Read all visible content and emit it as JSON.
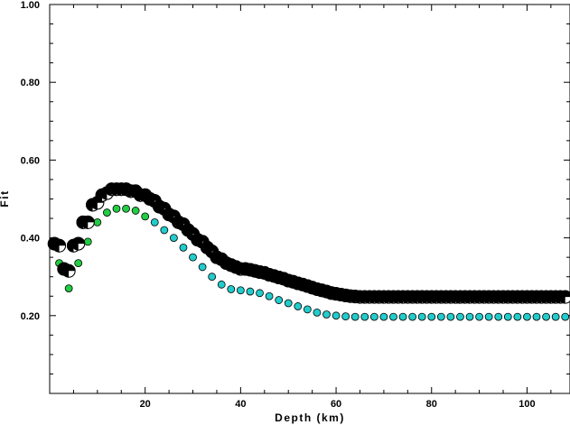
{
  "chart_data": {
    "type": "scatter",
    "xlabel": "Depth (km)",
    "ylabel": "Fit",
    "xlim": [
      0,
      109
    ],
    "ylim": [
      0,
      1.0
    ],
    "x_ticks": [
      20,
      40,
      60,
      80,
      100
    ],
    "y_ticks": [
      0.2,
      0.4,
      0.6,
      0.8,
      1.0
    ],
    "x_tick_labels": [
      "20",
      "40",
      "60",
      "80",
      "100"
    ],
    "y_tick_labels": [
      "0.20",
      "0.40",
      "0.60",
      "0.80",
      "1.00"
    ],
    "grid": false,
    "legend": false,
    "colors": {
      "beachball_fill": "#000000",
      "beachball_rim": "#ffffff",
      "small_green": "#22cc44",
      "small_cyan": "#22cccc"
    },
    "series": [
      {
        "marker": "beachball",
        "x": [
          1,
          2,
          3,
          4,
          5,
          6,
          7,
          8,
          9,
          10,
          11,
          12,
          13,
          14,
          15,
          16,
          17,
          18,
          19,
          20,
          21,
          22,
          23,
          24,
          25,
          26,
          27,
          28,
          29,
          30,
          31,
          32,
          33,
          34,
          35,
          36,
          37,
          38,
          39,
          40,
          41,
          42,
          43,
          44,
          45,
          46,
          47,
          48,
          49,
          50,
          51,
          52,
          53,
          54,
          55,
          56,
          57,
          58,
          59,
          60,
          61,
          62,
          63,
          64,
          65,
          66,
          67,
          68,
          69,
          70,
          71,
          72,
          73,
          74,
          75,
          76,
          77,
          78,
          79,
          80,
          81,
          82,
          83,
          84,
          85,
          86,
          87,
          88,
          89,
          90,
          91,
          92,
          93,
          94,
          95,
          96,
          97,
          98,
          99,
          100,
          101,
          102,
          103,
          104,
          105,
          106,
          107,
          108
        ],
        "y": [
          0.385,
          0.38,
          0.32,
          0.315,
          0.38,
          0.385,
          0.44,
          0.44,
          0.485,
          0.49,
          0.51,
          0.515,
          0.525,
          0.525,
          0.525,
          0.525,
          0.52,
          0.52,
          0.51,
          0.51,
          0.5,
          0.495,
          0.48,
          0.475,
          0.46,
          0.455,
          0.44,
          0.435,
          0.42,
          0.41,
          0.395,
          0.39,
          0.375,
          0.365,
          0.35,
          0.345,
          0.335,
          0.33,
          0.325,
          0.32,
          0.32,
          0.318,
          0.315,
          0.312,
          0.31,
          0.305,
          0.302,
          0.298,
          0.295,
          0.29,
          0.287,
          0.283,
          0.28,
          0.276,
          0.272,
          0.268,
          0.265,
          0.262,
          0.258,
          0.256,
          0.254,
          0.252,
          0.25,
          0.249,
          0.248,
          0.248,
          0.248,
          0.248,
          0.248,
          0.248,
          0.248,
          0.248,
          0.248,
          0.248,
          0.248,
          0.248,
          0.248,
          0.248,
          0.248,
          0.248,
          0.248,
          0.248,
          0.248,
          0.248,
          0.248,
          0.248,
          0.248,
          0.248,
          0.248,
          0.248,
          0.248,
          0.248,
          0.248,
          0.248,
          0.248,
          0.248,
          0.248,
          0.248,
          0.248,
          0.248,
          0.248,
          0.248,
          0.248,
          0.248,
          0.248,
          0.248,
          0.248,
          0.248
        ]
      },
      {
        "marker": "small_circle",
        "x": [
          2,
          4,
          6,
          8,
          10,
          12,
          14,
          16,
          18,
          20,
          22,
          24,
          26,
          28,
          30,
          32,
          34,
          36,
          38,
          40,
          42,
          44,
          46,
          48,
          50,
          52,
          54,
          56,
          58,
          60,
          62,
          64,
          66,
          68,
          70,
          72,
          74,
          76,
          78,
          80,
          82,
          84,
          86,
          88,
          90,
          92,
          94,
          96,
          98,
          100,
          102,
          104,
          106,
          108
        ],
        "y": [
          0.335,
          0.27,
          0.335,
          0.39,
          0.44,
          0.465,
          0.475,
          0.475,
          0.47,
          0.455,
          0.44,
          0.42,
          0.4,
          0.375,
          0.35,
          0.325,
          0.3,
          0.28,
          0.268,
          0.265,
          0.262,
          0.258,
          0.25,
          0.24,
          0.232,
          0.224,
          0.216,
          0.208,
          0.203,
          0.2,
          0.198,
          0.197,
          0.197,
          0.197,
          0.197,
          0.197,
          0.197,
          0.197,
          0.197,
          0.197,
          0.197,
          0.197,
          0.197,
          0.197,
          0.197,
          0.197,
          0.197,
          0.197,
          0.197,
          0.197,
          0.197,
          0.197,
          0.197,
          0.197
        ]
      }
    ]
  }
}
